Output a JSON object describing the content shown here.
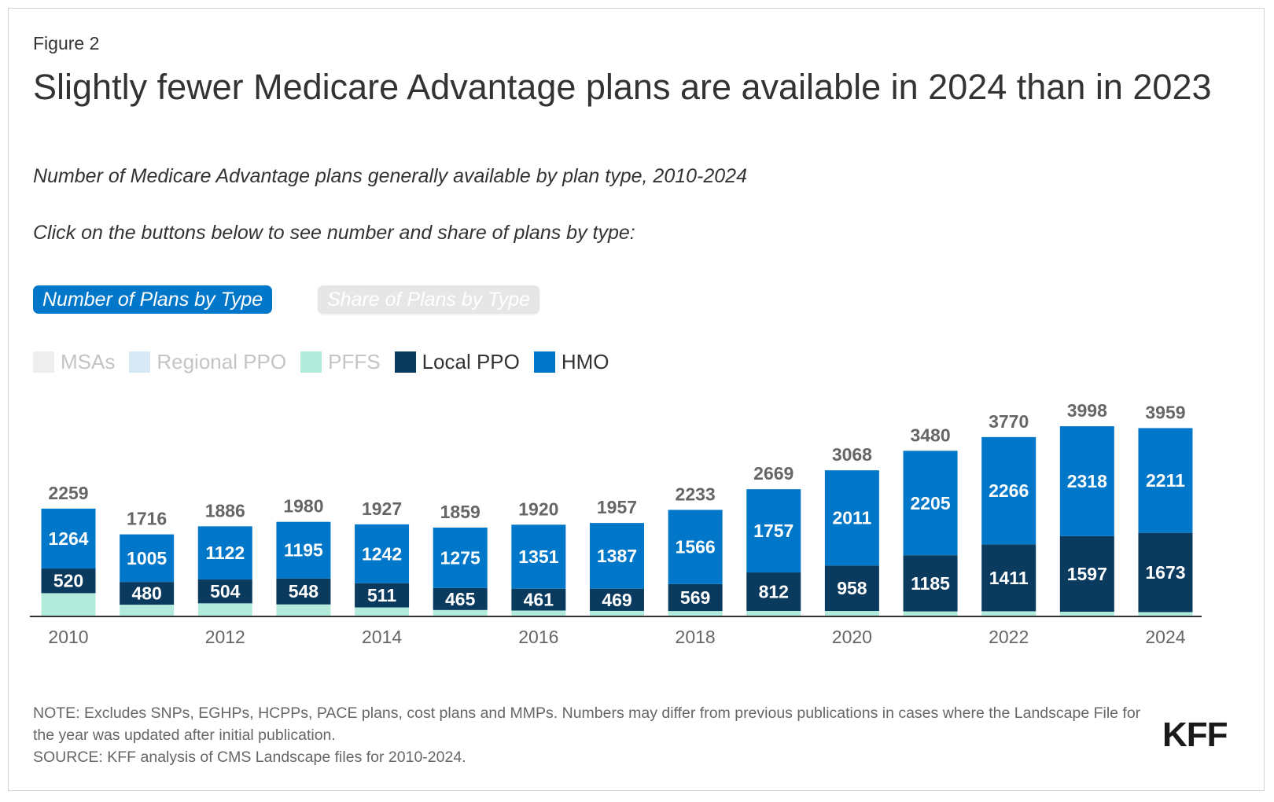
{
  "figure_label": "Figure 2",
  "title": "Slightly fewer Medicare Advantage plans are available in 2024 than in 2023",
  "subtitle": "Number of Medicare Advantage plans generally available by plan type, 2010-2024",
  "instruction": "Click on the buttons below to see number and share of plans by type:",
  "buttons": {
    "active": "Number of Plans by Type",
    "inactive": "Share of Plans by Type"
  },
  "legend": [
    {
      "label": "MSAs",
      "color": "#eeeeee",
      "text_color": "#c4c4c4"
    },
    {
      "label": "Regional PPO",
      "color": "#d8e9f6",
      "text_color": "#c4c4c4"
    },
    {
      "label": "PFFS",
      "color": "#b2ebdc",
      "text_color": "#c4c4c4"
    },
    {
      "label": "Local PPO",
      "color": "#0b3a5f",
      "text_color": "#333333"
    },
    {
      "label": "HMO",
      "color": "#0077c8",
      "text_color": "#333333"
    }
  ],
  "chart_data": {
    "type": "bar",
    "stacked": true,
    "categories": [
      "2010",
      "2011",
      "2012",
      "2013",
      "2014",
      "2015",
      "2016",
      "2017",
      "2018",
      "2019",
      "2020",
      "2021",
      "2022",
      "2023",
      "2024"
    ],
    "x_tick_labels": [
      "2010",
      "2012",
      "2014",
      "2016",
      "2018",
      "2020",
      "2022",
      "2024"
    ],
    "totals": [
      2259,
      1716,
      1886,
      1980,
      1927,
      1859,
      1920,
      1957,
      2233,
      2669,
      3068,
      3480,
      3770,
      3998,
      3959
    ],
    "series": [
      {
        "name": "MSAs",
        "color": "#eeeeee",
        "values": [
          0,
          0,
          0,
          0,
          0,
          0,
          0,
          0,
          0,
          0,
          0,
          0,
          0,
          0,
          0
        ]
      },
      {
        "name": "Regional PPO",
        "color": "#d8e9f6",
        "values": [
          0,
          0,
          0,
          0,
          0,
          0,
          0,
          0,
          0,
          0,
          0,
          0,
          0,
          0,
          0
        ]
      },
      {
        "name": "PFFS",
        "color": "#b2ebdc",
        "values": [
          475,
          231,
          260,
          237,
          174,
          119,
          108,
          101,
          98,
          100,
          99,
          90,
          93,
          83,
          75
        ]
      },
      {
        "name": "Local PPO",
        "color": "#0b3a5f",
        "values": [
          520,
          480,
          504,
          548,
          511,
          465,
          461,
          469,
          569,
          812,
          958,
          1185,
          1411,
          1597,
          1673
        ]
      },
      {
        "name": "HMO",
        "color": "#0077c8",
        "values": [
          1264,
          1005,
          1122,
          1195,
          1242,
          1275,
          1351,
          1387,
          1566,
          1757,
          2011,
          2205,
          2266,
          2318,
          2211
        ]
      }
    ],
    "labeled_series": [
      "Local PPO",
      "HMO"
    ],
    "ylim": [
      0,
      4200
    ],
    "grid": false
  },
  "note": "NOTE: Excludes SNPs, EGHPs, HCPPs, PACE plans, cost plans and MMPs. Numbers may differ from previous publications in cases where the Landscape File for the year was updated after initial publication.",
  "source": "SOURCE: KFF analysis of CMS Landscape files for 2010-2024.",
  "logo": "KFF"
}
